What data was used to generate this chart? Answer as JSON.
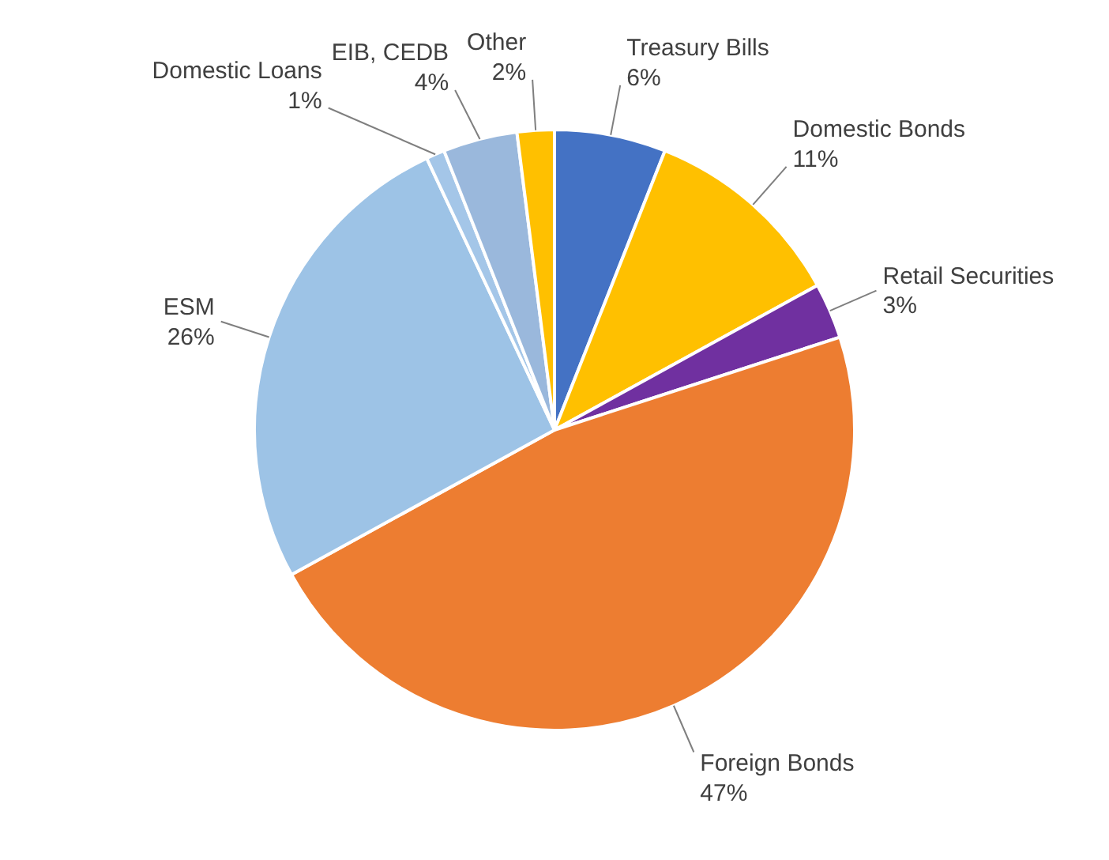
{
  "chart_data": {
    "type": "pie",
    "categories": [
      "Treasury Bills",
      "Domestic Bonds",
      "Retail Securities",
      "Foreign Bonds",
      "ESM",
      "Domestic Loans",
      "EIB, CEDB",
      "Other"
    ],
    "values": [
      6,
      11,
      3,
      47,
      26,
      1,
      4,
      2
    ],
    "colors": [
      "#4472c4",
      "#ffc000",
      "#7030a0",
      "#ed7d31",
      "#9dc3e6",
      "#a4c6e8",
      "#9ab8dc",
      "#ffc000"
    ],
    "value_labels": [
      "6%",
      "11%",
      "3%",
      "47%",
      "26%",
      "1%",
      "4%",
      "2%"
    ]
  }
}
